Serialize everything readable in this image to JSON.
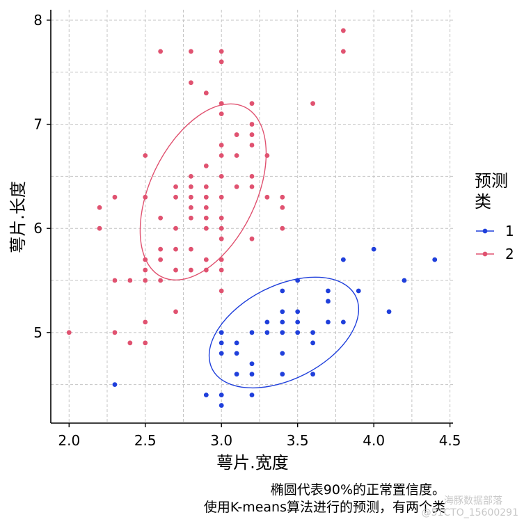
{
  "chart_data": {
    "type": "scatter",
    "xlabel": "萼片.宽度",
    "ylabel": "萼片.长度",
    "xlim": [
      1.88,
      4.52
    ],
    "ylim": [
      4.13,
      8.1
    ],
    "xticks": [
      "2.0",
      "2.5",
      "3.0",
      "3.5",
      "4.0",
      "4.5"
    ],
    "yticks": [
      "5",
      "6",
      "7",
      "8"
    ],
    "grid": "dashed major and minor",
    "legend": {
      "title": "预测类",
      "title_lines": [
        "预测",
        "类"
      ],
      "position": "right"
    },
    "caption_lines": [
      "椭圆代表90%的正常置信度。",
      "使用K-means算法进行的预测，有两个类"
    ],
    "series": [
      {
        "name": "1",
        "color": "#1f3fdb",
        "points": [
          [
            2.3,
            4.5
          ],
          [
            2.9,
            4.4
          ],
          [
            3.0,
            4.4
          ],
          [
            3.0,
            4.3
          ],
          [
            3.2,
            4.4
          ],
          [
            3.0,
            4.9
          ],
          [
            3.0,
            4.8
          ],
          [
            3.0,
            5.0
          ],
          [
            3.1,
            4.9
          ],
          [
            3.1,
            4.8
          ],
          [
            3.1,
            4.6
          ],
          [
            3.2,
            4.7
          ],
          [
            3.2,
            4.6
          ],
          [
            3.2,
            5.0
          ],
          [
            3.3,
            5.0
          ],
          [
            3.3,
            5.1
          ],
          [
            3.4,
            4.6
          ],
          [
            3.4,
            4.8
          ],
          [
            3.4,
            5.0
          ],
          [
            3.4,
            5.1
          ],
          [
            3.4,
            5.2
          ],
          [
            3.4,
            5.4
          ],
          [
            3.5,
            5.0
          ],
          [
            3.5,
            5.1
          ],
          [
            3.5,
            5.2
          ],
          [
            3.5,
            5.5
          ],
          [
            3.6,
            4.6
          ],
          [
            3.6,
            4.9
          ],
          [
            3.6,
            5.0
          ],
          [
            3.7,
            5.1
          ],
          [
            3.7,
            5.3
          ],
          [
            3.7,
            5.4
          ],
          [
            3.8,
            5.1
          ],
          [
            3.8,
            5.7
          ],
          [
            3.9,
            5.4
          ],
          [
            4.0,
            5.8
          ],
          [
            4.1,
            5.2
          ],
          [
            4.2,
            5.5
          ],
          [
            4.4,
            5.7
          ]
        ],
        "ellipse": {
          "cx": 3.41,
          "cy": 5.0,
          "rx_ratio": 0.4,
          "ry_ratio": 0.23,
          "angle_deg": -27
        }
      },
      {
        "name": "2",
        "color": "#e05270",
        "points": [
          [
            2.0,
            5.0
          ],
          [
            2.2,
            6.0
          ],
          [
            2.2,
            6.2
          ],
          [
            2.3,
            5.0
          ],
          [
            2.3,
            5.5
          ],
          [
            2.3,
            6.3
          ],
          [
            2.4,
            4.9
          ],
          [
            2.4,
            5.5
          ],
          [
            2.5,
            4.9
          ],
          [
            2.5,
            5.1
          ],
          [
            2.5,
            5.5
          ],
          [
            2.5,
            5.6
          ],
          [
            2.5,
            5.7
          ],
          [
            2.5,
            6.3
          ],
          [
            2.5,
            6.7
          ],
          [
            2.6,
            5.5
          ],
          [
            2.6,
            5.7
          ],
          [
            2.6,
            5.8
          ],
          [
            2.6,
            6.1
          ],
          [
            2.6,
            7.7
          ],
          [
            2.7,
            5.2
          ],
          [
            2.7,
            5.6
          ],
          [
            2.7,
            5.8
          ],
          [
            2.7,
            6.0
          ],
          [
            2.7,
            6.3
          ],
          [
            2.7,
            6.4
          ],
          [
            2.8,
            5.6
          ],
          [
            2.8,
            5.8
          ],
          [
            2.8,
            6.1
          ],
          [
            2.8,
            6.2
          ],
          [
            2.8,
            6.3
          ],
          [
            2.8,
            6.4
          ],
          [
            2.8,
            6.5
          ],
          [
            2.8,
            7.4
          ],
          [
            2.8,
            7.7
          ],
          [
            2.9,
            5.6
          ],
          [
            2.9,
            5.7
          ],
          [
            2.9,
            6.0
          ],
          [
            2.9,
            6.1
          ],
          [
            2.9,
            6.2
          ],
          [
            2.9,
            6.3
          ],
          [
            2.9,
            6.4
          ],
          [
            2.9,
            6.6
          ],
          [
            2.9,
            7.3
          ],
          [
            3.0,
            5.4
          ],
          [
            3.0,
            5.6
          ],
          [
            3.0,
            5.7
          ],
          [
            3.0,
            5.9
          ],
          [
            3.0,
            6.0
          ],
          [
            3.0,
            6.1
          ],
          [
            3.0,
            6.3
          ],
          [
            3.0,
            6.5
          ],
          [
            3.0,
            6.7
          ],
          [
            3.0,
            6.8
          ],
          [
            3.0,
            7.1
          ],
          [
            3.0,
            7.2
          ],
          [
            3.0,
            7.6
          ],
          [
            3.0,
            7.7
          ],
          [
            3.1,
            6.4
          ],
          [
            3.1,
            6.7
          ],
          [
            3.1,
            6.9
          ],
          [
            3.2,
            5.9
          ],
          [
            3.2,
            6.4
          ],
          [
            3.2,
            6.5
          ],
          [
            3.2,
            6.8
          ],
          [
            3.2,
            6.9
          ],
          [
            3.2,
            7.0
          ],
          [
            3.2,
            7.2
          ],
          [
            3.3,
            6.3
          ],
          [
            3.3,
            6.7
          ],
          [
            3.4,
            6.0
          ],
          [
            3.4,
            6.2
          ],
          [
            3.4,
            6.3
          ],
          [
            3.6,
            7.2
          ],
          [
            3.8,
            7.7
          ],
          [
            3.8,
            7.9
          ]
        ],
        "ellipse": {
          "cx": 2.88,
          "cy": 6.35,
          "rx_ratio": 0.47,
          "ry_ratio": 0.26,
          "angle_deg": -64
        }
      }
    ],
    "watermark": [
      "海豚数据部落",
      "@51CTO_15600291"
    ]
  }
}
